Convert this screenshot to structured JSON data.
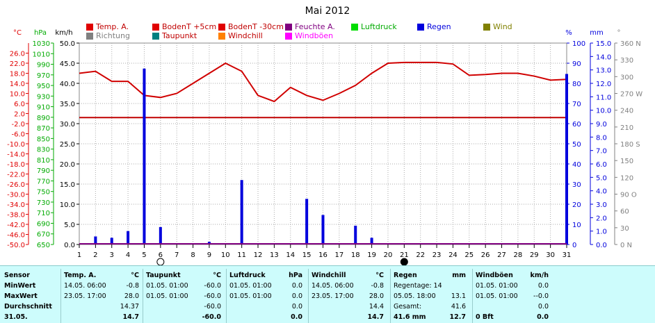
{
  "chart_data": {
    "type": "line",
    "title": "Mai 2012",
    "x": [
      1,
      2,
      3,
      4,
      5,
      6,
      7,
      8,
      9,
      10,
      11,
      12,
      13,
      14,
      15,
      16,
      17,
      18,
      19,
      20,
      21,
      22,
      23,
      24,
      25,
      26,
      27,
      28,
      29,
      30,
      31
    ],
    "xlim": [
      1,
      31
    ],
    "legend": [
      {
        "label": "Temp. A.",
        "color": "#e00000"
      },
      {
        "label": "BodenT +5cm",
        "color": "#e00000"
      },
      {
        "label": "BodenT -30cm",
        "color": "#e00000"
      },
      {
        "label": "Feuchte A.",
        "color": "#800080"
      },
      {
        "label": "Luftdruck",
        "color": "#00dd00"
      },
      {
        "label": "Regen",
        "color": "#0000dd"
      },
      {
        "label": "Wind",
        "color": "#808000"
      },
      {
        "label": "Richtung",
        "color": "#808080"
      },
      {
        "label": "Taupunkt",
        "color": "#008080"
      },
      {
        "label": "Windchill",
        "color": "#ff8000"
      },
      {
        "label": "Windböen",
        "color": "#ff00ff"
      }
    ],
    "axes": {
      "temp": {
        "unit": "°C",
        "color": "#e00000",
        "range": [
          -50,
          30
        ],
        "ticks": [
          "26.0",
          "22.0",
          "18.0",
          "14.0",
          "10.0",
          "6.0",
          "2.0",
          "-2.0",
          "-6.0",
          "-10.0",
          "-14.0",
          "-18.0",
          "-22.0",
          "-26.0",
          "-30.0",
          "-34.0",
          "-38.0",
          "-42.0",
          "-46.0",
          "-50.0"
        ]
      },
      "pressure": {
        "unit": "hPa",
        "color": "#00aa00",
        "range": [
          650,
          1030
        ],
        "ticks": [
          "1030",
          "1010",
          "990",
          "970",
          "950",
          "930",
          "910",
          "890",
          "870",
          "850",
          "830",
          "810",
          "790",
          "770",
          "750",
          "730",
          "710",
          "690",
          "670",
          "650"
        ]
      },
      "wind_speed": {
        "unit": "km/h",
        "color": "#000000",
        "range": [
          0,
          50
        ],
        "ticks": [
          "50.0",
          "45.0",
          "40.0",
          "35.0",
          "30.0",
          "25.0",
          "20.0",
          "15.0",
          "10.0",
          "5.0",
          "0.0"
        ]
      },
      "humidity": {
        "unit": "%",
        "color": "#0000dd",
        "range": [
          0,
          100
        ],
        "ticks": [
          "100",
          "90",
          "80",
          "70",
          "60",
          "50",
          "40",
          "30",
          "20",
          "10",
          "0"
        ]
      },
      "rain": {
        "unit": "mm",
        "color": "#0000dd",
        "range": [
          0,
          15
        ],
        "ticks": [
          "15.0",
          "14.0",
          "13.0",
          "12.0",
          "11.0",
          "10.0",
          "9.0",
          "8.0",
          "7.0",
          "6.0",
          "5.0",
          "4.0",
          "3.0",
          "2.0",
          "1.0",
          "0.0"
        ]
      },
      "direction": {
        "unit": "°",
        "color": "#808080",
        "range": [
          0,
          360
        ],
        "ticks": [
          "360 N",
          "330",
          "300",
          "270 W",
          "240",
          "210",
          "180 S",
          "150",
          "120",
          "90 O",
          "60",
          "30",
          "0 N"
        ]
      }
    },
    "series": [
      {
        "name": "Temp. A.",
        "color": "#d00000",
        "axis": "wind_speed",
        "values": [
          42.5,
          43.0,
          40.5,
          40.5,
          37.0,
          36.5,
          37.5,
          40.0,
          42.5,
          45.0,
          43.0,
          37.0,
          35.5,
          39.0,
          37.0,
          35.8,
          37.5,
          39.5,
          42.5,
          45.0,
          45.2,
          45.2,
          45.2,
          44.8,
          42.0,
          42.2,
          42.5,
          42.5,
          41.8,
          40.8,
          41.0
        ]
      },
      {
        "name": "BodenT -30cm",
        "color": "#c00000",
        "axis": "wind_speed",
        "values": [
          31.5,
          31.5,
          31.5,
          31.5,
          31.5,
          31.5,
          31.5,
          31.5,
          31.5,
          31.5,
          31.5,
          31.5,
          31.5,
          31.5,
          31.5,
          31.5,
          31.5,
          31.5,
          31.5,
          31.5,
          31.5,
          31.5,
          31.5,
          31.5,
          31.5,
          31.5,
          31.5,
          31.5,
          31.5,
          31.5,
          31.5
        ]
      },
      {
        "name": "Regen",
        "color": "#0000dd",
        "axis": "rain",
        "type": "bar",
        "values": [
          0,
          0.6,
          0.5,
          1.0,
          13.1,
          1.3,
          0.1,
          0,
          0.2,
          0,
          4.8,
          0,
          0,
          0,
          3.4,
          2.2,
          0,
          1.4,
          0.5,
          0,
          0,
          0,
          0,
          0,
          0,
          0,
          0,
          0,
          0,
          0,
          12.7
        ]
      }
    ],
    "moon": {
      "full_day": "6",
      "new_day": "21"
    },
    "grid": true
  },
  "stats": {
    "sensor_header": "Sensor",
    "rows": [
      "MinWert",
      "MaxWert",
      "Durchschnitt",
      "31.05."
    ],
    "temp": {
      "h": "Temp. A.",
      "u": "°C",
      "d": [
        "14.05. 06:00",
        "23.05. 17:00",
        "",
        ""
      ],
      "v": [
        "-0.8",
        "28.0",
        "14.37",
        "14.7"
      ]
    },
    "tau": {
      "h": "Taupunkt",
      "u": "°C",
      "d": [
        "01.05. 01:00",
        "01.05. 01:00",
        "",
        ""
      ],
      "v": [
        "-60.0",
        "-60.0",
        "-60.0",
        "-60.0"
      ]
    },
    "luft": {
      "h": "Luftdruck",
      "u": "hPa",
      "d": [
        "01.05. 01:00",
        "01.05. 01:00",
        "",
        ""
      ],
      "v": [
        "0.0",
        "0.0",
        "0.0",
        "0.0"
      ]
    },
    "wchill": {
      "h": "Windchill",
      "u": "°C",
      "d": [
        "14.05. 06:00",
        "23.05. 17:00",
        "",
        ""
      ],
      "v": [
        "-0.8",
        "28.0",
        "14.4",
        "14.7"
      ]
    },
    "regen": {
      "h": "Regen",
      "u": "mm",
      "d": [
        "Regentage: 14",
        "05.05. 18:00",
        "Gesamt:",
        "41.6 mm"
      ],
      "v": [
        "",
        "13.1",
        "41.6",
        "12.7"
      ]
    },
    "wboen": {
      "h": "Windböen",
      "u": "km/h",
      "d": [
        "01.05. 01:00",
        "01.05. 01:00",
        "",
        "0 Bft"
      ],
      "v": [
        "0.0",
        "--0.0",
        "0.0",
        "0.0"
      ]
    }
  }
}
